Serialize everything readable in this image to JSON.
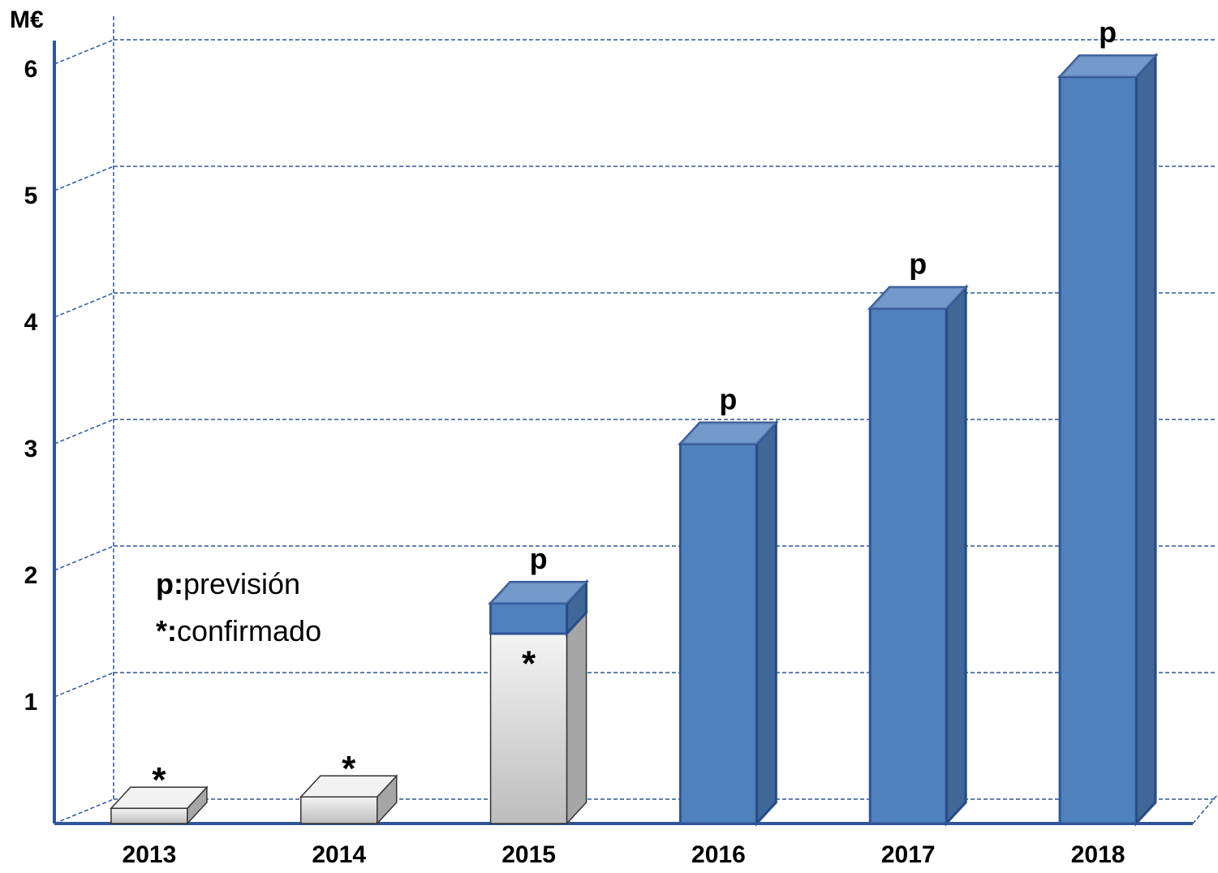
{
  "chart_data": {
    "type": "bar3d_stacked",
    "y_label": "M€",
    "categories": [
      "2013",
      "2014",
      "2015",
      "2016",
      "2017",
      "2018"
    ],
    "series": [
      {
        "name": "confirmado",
        "key": "*:",
        "marker": "*",
        "color": "#d4d4d4",
        "values": [
          0.12,
          0.21,
          1.5,
          null,
          null,
          null
        ]
      },
      {
        "name": "previsión",
        "key": "p:",
        "marker": "p",
        "color": "#4f81bd",
        "values": [
          null,
          null,
          0.24,
          3.0,
          4.07,
          5.9
        ]
      }
    ],
    "ylim": [
      0,
      6.2
    ],
    "yticks": [
      1,
      2,
      3,
      4,
      5,
      6
    ],
    "grid": true,
    "legend": "left"
  }
}
